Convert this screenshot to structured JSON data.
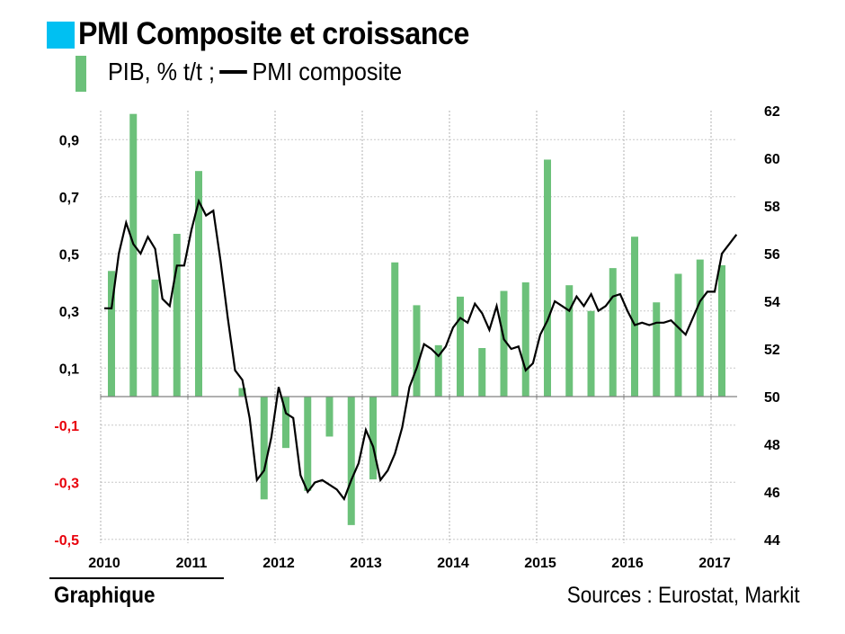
{
  "header": {
    "title": "PMI Composite et croissance",
    "legend_prefix": "PIB, % t/t ;",
    "legend_suffix": "PMI composite"
  },
  "footer": {
    "label": "Graphique",
    "sources": "Sources : Eurostat, Markit"
  },
  "colors": {
    "title_swatch": "#00c0f2",
    "bar": "#6cc17a",
    "line": "#000000",
    "negative_tick": "#e8000b",
    "positive_tick": "#000000",
    "grid": "#c8c8c8"
  },
  "chart_data": {
    "type": "bar+line",
    "title": "PMI Composite et croissance",
    "legend": [
      "PIB, % t/t",
      "PMI composite"
    ],
    "legend_placement": "top-left",
    "grid": true,
    "x_ticks": [
      "2010",
      "2011",
      "2012",
      "2013",
      "2014",
      "2015",
      "2016",
      "2017"
    ],
    "x_range": [
      "2010-01",
      "2017-04"
    ],
    "y_left": {
      "label": "PIB, % t/t",
      "range": [
        -0.5,
        1.0
      ],
      "ticks": [
        "0,9",
        "0,7",
        "0,5",
        "0,3",
        "0,1",
        "-0,1",
        "-0,3",
        "-0,5"
      ],
      "tick_values": [
        0.9,
        0.7,
        0.5,
        0.3,
        0.1,
        -0.1,
        -0.3,
        -0.5
      ]
    },
    "y_right": {
      "label": "PMI composite",
      "range": [
        44,
        62
      ],
      "ticks": [
        "62",
        "60",
        "58",
        "56",
        "54",
        "52",
        "50",
        "48",
        "46",
        "44"
      ],
      "tick_values": [
        62,
        60,
        58,
        56,
        54,
        52,
        50,
        48,
        46,
        44
      ]
    },
    "series": [
      {
        "name": "PIB, % t/t",
        "type": "bar",
        "axis": "left",
        "frequency": "quarterly",
        "x": [
          "2010Q1",
          "2010Q2",
          "2010Q3",
          "2010Q4",
          "2011Q1",
          "2011Q2",
          "2011Q3",
          "2011Q4",
          "2012Q1",
          "2012Q2",
          "2012Q3",
          "2012Q4",
          "2013Q1",
          "2013Q2",
          "2013Q3",
          "2013Q4",
          "2014Q1",
          "2014Q2",
          "2014Q3",
          "2014Q4",
          "2015Q1",
          "2015Q2",
          "2015Q3",
          "2015Q4",
          "2016Q1",
          "2016Q2",
          "2016Q3",
          "2016Q4",
          "2017Q1"
        ],
        "values": [
          0.44,
          0.99,
          0.41,
          0.57,
          0.79,
          0.0,
          0.03,
          -0.36,
          -0.18,
          -0.33,
          -0.14,
          -0.45,
          -0.29,
          0.47,
          0.32,
          0.18,
          0.35,
          0.17,
          0.37,
          0.4,
          0.83,
          0.39,
          0.3,
          0.45,
          0.56,
          0.33,
          0.43,
          0.48,
          0.46
        ]
      },
      {
        "name": "PMI composite",
        "type": "line",
        "axis": "right",
        "frequency": "monthly",
        "start": "2010-01",
        "values": [
          53.7,
          53.7,
          56.0,
          57.3,
          56.4,
          56.0,
          56.7,
          56.2,
          54.1,
          53.8,
          55.5,
          55.5,
          57.0,
          58.2,
          57.6,
          57.8,
          55.7,
          53.3,
          51.1,
          50.7,
          49.1,
          46.5,
          46.9,
          48.3,
          50.4,
          49.3,
          49.1,
          46.7,
          46.0,
          46.4,
          46.5,
          46.3,
          46.1,
          45.7,
          46.5,
          47.2,
          48.6,
          47.9,
          46.5,
          46.9,
          47.6,
          48.7,
          50.4,
          51.2,
          52.2,
          52.0,
          51.7,
          52.1,
          52.9,
          53.3,
          53.1,
          53.9,
          53.5,
          52.8,
          53.8,
          52.4,
          52.0,
          52.1,
          51.1,
          51.4,
          52.6,
          53.2,
          54.0,
          53.8,
          53.6,
          54.2,
          53.8,
          54.3,
          53.6,
          53.8,
          54.2,
          54.3,
          53.6,
          53.0,
          53.1,
          53.0,
          53.1,
          53.1,
          53.2,
          52.9,
          52.6,
          53.3,
          54.0,
          54.4,
          54.4,
          56.0,
          56.4,
          56.8
        ]
      }
    ]
  }
}
